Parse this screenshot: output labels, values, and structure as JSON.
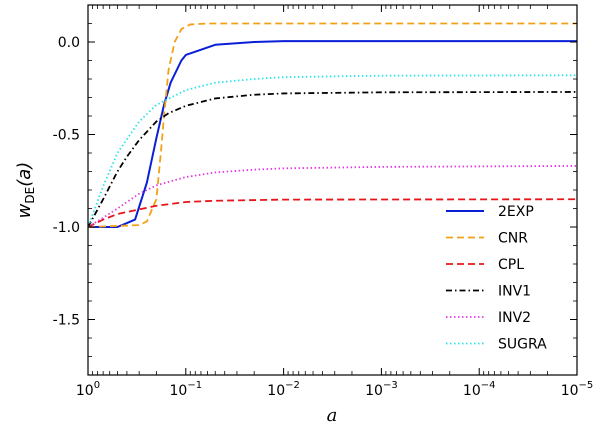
{
  "chart_data": {
    "type": "line",
    "title": "",
    "xlabel": "a",
    "ylabel": "w_DE(a)",
    "xscale": "log",
    "x_direction": "decreasing (1 to 1e-5)",
    "xlim": [
      1,
      1e-05
    ],
    "ylim": [
      -1.8,
      0.2
    ],
    "x_ticks": [
      {
        "value": 1,
        "base": "10",
        "exp": "0"
      },
      {
        "value": 0.1,
        "base": "10",
        "exp": "−1"
      },
      {
        "value": 0.01,
        "base": "10",
        "exp": "−2"
      },
      {
        "value": 0.001,
        "base": "10",
        "exp": "−3"
      },
      {
        "value": 0.0001,
        "base": "10",
        "exp": "−4"
      },
      {
        "value": 1e-05,
        "base": "10",
        "exp": "−5"
      }
    ],
    "y_ticks": [
      {
        "value": 0.0,
        "label": "0.0"
      },
      {
        "value": -0.5,
        "label": "-0.5"
      },
      {
        "value": -1.0,
        "label": "-1.0"
      },
      {
        "value": -1.5,
        "label": "-1.5"
      }
    ],
    "grid": false,
    "legend_position": "lower-right",
    "series": [
      {
        "name": "2EXP",
        "color": "#0a1fd8",
        "style": "solid",
        "points": [
          [
            1,
            -1.0
          ],
          [
            0.5,
            -1.0
          ],
          [
            0.33,
            -0.96
          ],
          [
            0.25,
            -0.76
          ],
          [
            0.2,
            -0.52
          ],
          [
            0.167,
            -0.34
          ],
          [
            0.143,
            -0.22
          ],
          [
            0.111,
            -0.1
          ],
          [
            0.1,
            -0.07
          ],
          [
            0.05,
            -0.015
          ],
          [
            0.02,
            0.0
          ],
          [
            0.01,
            0.005
          ],
          [
            1e-05,
            0.005
          ]
        ]
      },
      {
        "name": "CNR",
        "color": "#f0a116",
        "style": "dashed",
        "points": [
          [
            1,
            -1.0
          ],
          [
            0.3,
            -0.99
          ],
          [
            0.25,
            -0.97
          ],
          [
            0.2,
            -0.85
          ],
          [
            0.18,
            -0.6
          ],
          [
            0.167,
            -0.4
          ],
          [
            0.15,
            -0.15
          ],
          [
            0.13,
            0.0
          ],
          [
            0.111,
            0.07
          ],
          [
            0.09,
            0.095
          ],
          [
            0.06,
            0.1
          ],
          [
            1e-05,
            0.1
          ]
        ]
      },
      {
        "name": "CPL",
        "color": "#e8141a",
        "style": "dashed",
        "points": [
          [
            1,
            -1.0
          ],
          [
            0.7,
            -0.96
          ],
          [
            0.5,
            -0.93
          ],
          [
            0.3,
            -0.905
          ],
          [
            0.2,
            -0.885
          ],
          [
            0.1,
            -0.865
          ],
          [
            0.05,
            -0.858
          ],
          [
            0.01,
            -0.852
          ],
          [
            1e-05,
            -0.85
          ]
        ]
      },
      {
        "name": "INV1",
        "color": "#000000",
        "style": "dashdot",
        "points": [
          [
            1,
            -1.0
          ],
          [
            0.7,
            -0.85
          ],
          [
            0.5,
            -0.7
          ],
          [
            0.4,
            -0.62
          ],
          [
            0.3,
            -0.53
          ],
          [
            0.2,
            -0.43
          ],
          [
            0.15,
            -0.385
          ],
          [
            0.1,
            -0.345
          ],
          [
            0.05,
            -0.305
          ],
          [
            0.02,
            -0.285
          ],
          [
            0.01,
            -0.278
          ],
          [
            0.001,
            -0.272
          ],
          [
            1e-05,
            -0.27
          ]
        ]
      },
      {
        "name": "INV2",
        "color": "#e23adf",
        "style": "dotted",
        "points": [
          [
            1,
            -1.0
          ],
          [
            0.7,
            -0.95
          ],
          [
            0.5,
            -0.9
          ],
          [
            0.3,
            -0.82
          ],
          [
            0.2,
            -0.775
          ],
          [
            0.1,
            -0.73
          ],
          [
            0.05,
            -0.705
          ],
          [
            0.02,
            -0.69
          ],
          [
            0.01,
            -0.683
          ],
          [
            0.001,
            -0.675
          ],
          [
            1e-05,
            -0.67
          ]
        ]
      },
      {
        "name": "SUGRA",
        "color": "#2ae3ea",
        "style": "dotted",
        "points": [
          [
            1,
            -1.0
          ],
          [
            0.7,
            -0.78
          ],
          [
            0.5,
            -0.6
          ],
          [
            0.3,
            -0.43
          ],
          [
            0.2,
            -0.34
          ],
          [
            0.1,
            -0.26
          ],
          [
            0.05,
            -0.22
          ],
          [
            0.02,
            -0.2
          ],
          [
            0.01,
            -0.19
          ],
          [
            0.001,
            -0.182
          ],
          [
            1e-05,
            -0.18
          ]
        ]
      }
    ]
  }
}
